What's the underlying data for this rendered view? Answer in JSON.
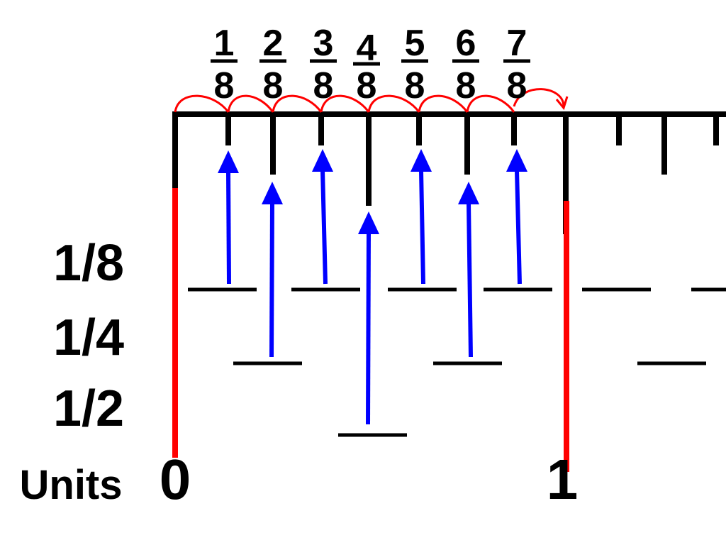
{
  "row_labels": {
    "eighth": "1/8",
    "quarter": "1/4",
    "half": "1/2",
    "units": "Units"
  },
  "unit_labels": [
    "0",
    "1"
  ],
  "fractions": [
    {
      "num": "1",
      "den": "8"
    },
    {
      "num": "2",
      "den": "8"
    },
    {
      "num": "3",
      "den": "8"
    },
    {
      "num": "4",
      "den": "8"
    },
    {
      "num": "5",
      "den": "8"
    },
    {
      "num": "6",
      "den": "8"
    },
    {
      "num": "7",
      "den": "8"
    }
  ],
  "colors": {
    "ruler": "#000000",
    "unit_marker": "#ff0000",
    "arrow": "#0000ff",
    "hop_arcs": "#ff0000"
  }
}
